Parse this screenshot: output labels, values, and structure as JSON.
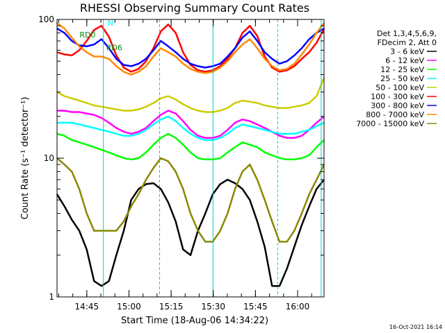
{
  "chart_data": {
    "type": "line",
    "title": "RHESSI Observing Summary Count Rates",
    "xlabel": "Start Time (18-Aug-06 14:34:22)",
    "ylabel": "Count Rate (s⁻¹ detector⁻¹)",
    "ylog": true,
    "ylim": [
      1,
      100
    ],
    "xlim_minutes": [
      0,
      95
    ],
    "x_ticks": [
      {
        "minute": 10.6,
        "label": "14:45"
      },
      {
        "minute": 25.6,
        "label": "15:00"
      },
      {
        "minute": 40.6,
        "label": "15:15"
      },
      {
        "minute": 55.6,
        "label": "15:30"
      },
      {
        "minute": 70.6,
        "label": "15:45"
      },
      {
        "minute": 85.6,
        "label": "16:00"
      }
    ],
    "y_ticks": [
      {
        "value": 1,
        "label": "1"
      },
      {
        "value": 10,
        "label": "10"
      },
      {
        "value": 100,
        "label": "100"
      }
    ],
    "legend_header": [
      "Det 1,3,4,5,6,9,",
      "FDecim 2, Att 0"
    ],
    "legend_position": "right",
    "series": [
      {
        "name": "3 - 6 keV",
        "color": "#000000",
        "values": [
          5.5,
          4.5,
          3.6,
          3.0,
          2.2,
          1.3,
          1.2,
          1.3,
          2.0,
          3.0,
          5.0,
          6.0,
          6.5,
          6.6,
          6.0,
          4.8,
          3.5,
          2.2,
          2.0,
          3.0,
          4.0,
          5.5,
          6.5,
          7.0,
          6.6,
          6.0,
          5.0,
          3.5,
          2.3,
          1.2,
          1.2,
          1.6,
          2.3,
          3.3,
          4.5,
          6.0,
          7.0
        ]
      },
      {
        "name": "6 - 12 keV",
        "color": "#ff00ff",
        "values": [
          22,
          22,
          21.5,
          21.5,
          21,
          20.5,
          19.5,
          18,
          16.5,
          15.5,
          15,
          15.5,
          16.5,
          18.5,
          20.5,
          22,
          21,
          18.5,
          16,
          14.5,
          14,
          14,
          14.5,
          16,
          18,
          19,
          18.5,
          17.5,
          16.5,
          15.5,
          14.5,
          14,
          14,
          14.5,
          16,
          18,
          20
        ]
      },
      {
        "name": "12 - 25 keV",
        "color": "#00ff00",
        "values": [
          15,
          14.5,
          13.5,
          13,
          12.5,
          12,
          11.5,
          11,
          10.5,
          10,
          9.8,
          10,
          11,
          12.5,
          14,
          15,
          14,
          12.5,
          11,
          10,
          9.8,
          9.8,
          10,
          11,
          12,
          13,
          12.5,
          12,
          11,
          10.5,
          10,
          9.8,
          9.8,
          10,
          10.5,
          12,
          13.5
        ]
      },
      {
        "name": "25 - 50 keV",
        "color": "#00ffff",
        "values": [
          18,
          18,
          18,
          17.5,
          17,
          16.5,
          16,
          15.5,
          15,
          14.5,
          14.5,
          15,
          16,
          17.5,
          19,
          20,
          18.5,
          16.5,
          15,
          14,
          13.5,
          13.5,
          14,
          15,
          16.5,
          17.5,
          17,
          16.5,
          16,
          15.5,
          15,
          15,
          15,
          15.5,
          16,
          17,
          18
        ]
      },
      {
        "name": "50 - 100 keV",
        "color": "#cccc00",
        "values": [
          30,
          28,
          27,
          26,
          25,
          24,
          23.5,
          23,
          22.5,
          22,
          22,
          22.5,
          23.5,
          25,
          27,
          28,
          26.5,
          24.5,
          23,
          22,
          21.5,
          21.5,
          22,
          23,
          25,
          26,
          25.5,
          25,
          24,
          23.5,
          23,
          23,
          23.5,
          24,
          25,
          28,
          38
        ]
      },
      {
        "name": "100 - 300 keV",
        "color": "#ff0000",
        "values": [
          58,
          56,
          55,
          60,
          70,
          84,
          90,
          75,
          55,
          45,
          42,
          44,
          50,
          62,
          82,
          92,
          80,
          58,
          47,
          43,
          42,
          43,
          46,
          52,
          62,
          80,
          90,
          76,
          54,
          45,
          42,
          43,
          46,
          52,
          58,
          68,
          85
        ]
      },
      {
        "name": "300 - 800 keV",
        "color": "#0000ff",
        "values": [
          86,
          80,
          70,
          65,
          64,
          66,
          72,
          62,
          52,
          47,
          46,
          48,
          52,
          60,
          70,
          64,
          58,
          52,
          48,
          46,
          45,
          46,
          48,
          54,
          62,
          74,
          82,
          70,
          58,
          52,
          48,
          50,
          55,
          62,
          72,
          80,
          86
        ]
      },
      {
        "name": "800 - 7000 keV",
        "color": "#ff8800",
        "values": [
          94,
          86,
          74,
          64,
          58,
          54,
          54,
          52,
          46,
          42,
          40,
          42,
          46,
          54,
          62,
          58,
          54,
          48,
          44,
          42,
          41,
          42,
          45,
          50,
          58,
          66,
          72,
          62,
          52,
          46,
          43,
          44,
          48,
          56,
          66,
          80,
          94
        ]
      },
      {
        "name": "7000 - 15000 keV",
        "color": "#888800",
        "values": [
          10,
          9,
          8,
          6,
          4,
          3,
          3,
          3,
          3,
          3.5,
          4.5,
          5.5,
          7,
          8.5,
          10,
          9.5,
          8,
          6,
          4,
          3,
          2.5,
          2.5,
          3,
          4,
          6,
          8,
          9,
          7,
          5,
          3.5,
          2.5,
          2.5,
          3,
          4,
          5.5,
          7,
          9
        ]
      }
    ],
    "annotations": [
      {
        "label": "N",
        "color": "#00ffff",
        "x_minute": 18,
        "y_value": 90
      },
      {
        "label": "RD0",
        "color": "#008800",
        "x_minute": 8,
        "y_value": 74
      },
      {
        "label": "RD6",
        "color": "#008800",
        "x_minute": 17.5,
        "y_value": 60
      }
    ],
    "saa_markers_minutes": [
      16.5,
      36.5,
      55.5,
      78.5,
      94
    ],
    "timestamp": "16-Oct-2021 16:14"
  }
}
